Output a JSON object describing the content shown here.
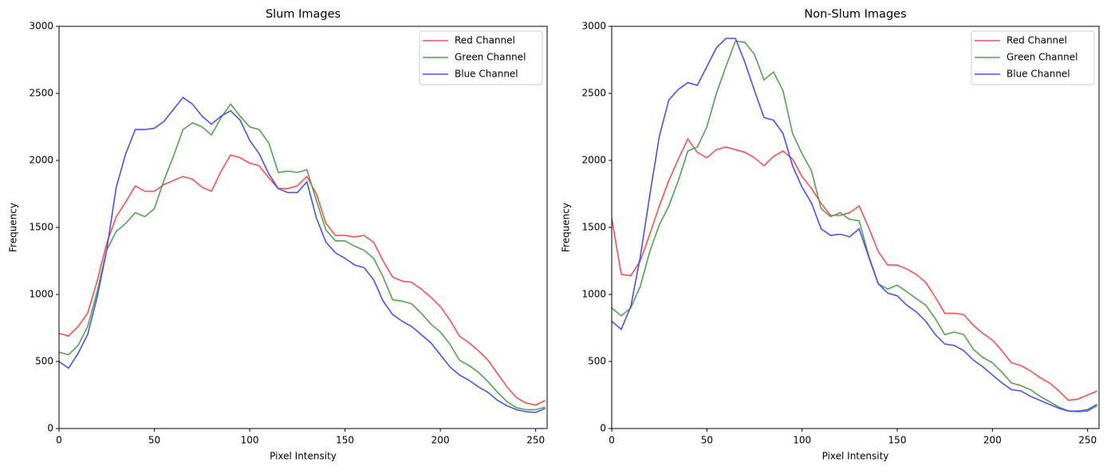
{
  "chart_data": [
    {
      "type": "line",
      "title": "Slum Images",
      "x_label": "Pixel Intensity",
      "y_label": "Frequency",
      "x": [
        0,
        5,
        10,
        15,
        20,
        25,
        30,
        35,
        40,
        45,
        50,
        55,
        60,
        65,
        70,
        75,
        80,
        85,
        90,
        95,
        100,
        105,
        110,
        115,
        120,
        125,
        130,
        135,
        140,
        145,
        150,
        155,
        160,
        165,
        170,
        175,
        180,
        185,
        190,
        195,
        200,
        205,
        210,
        215,
        220,
        225,
        230,
        235,
        240,
        245,
        250,
        255
      ],
      "xlim": [
        0,
        256
      ],
      "ylim": [
        0,
        3000
      ],
      "xticks": [
        0,
        50,
        100,
        150,
        200,
        250
      ],
      "yticks": [
        0,
        500,
        1000,
        1500,
        2000,
        2500,
        3000
      ],
      "grid": false,
      "legend": "upper right",
      "series": [
        {
          "name": "Red Channel",
          "color": "#ff4d4d",
          "values": [
            710,
            690,
            760,
            860,
            1100,
            1380,
            1580,
            1690,
            1810,
            1770,
            1770,
            1820,
            1850,
            1880,
            1860,
            1800,
            1770,
            1920,
            2040,
            2020,
            1980,
            1960,
            1870,
            1790,
            1790,
            1810,
            1880,
            1750,
            1530,
            1440,
            1440,
            1430,
            1440,
            1390,
            1250,
            1130,
            1100,
            1090,
            1040,
            980,
            910,
            810,
            690,
            640,
            580,
            510,
            410,
            310,
            230,
            190,
            175,
            210
          ]
        },
        {
          "name": "Green Channel",
          "color": "#4da64d",
          "values": [
            570,
            550,
            620,
            760,
            1020,
            1330,
            1470,
            1530,
            1610,
            1580,
            1640,
            1850,
            2030,
            2230,
            2280,
            2250,
            2190,
            2320,
            2420,
            2330,
            2250,
            2230,
            2130,
            1910,
            1920,
            1910,
            1930,
            1700,
            1480,
            1400,
            1400,
            1360,
            1330,
            1270,
            1130,
            960,
            950,
            930,
            860,
            780,
            720,
            630,
            510,
            470,
            420,
            350,
            270,
            200,
            155,
            140,
            140,
            160
          ]
        },
        {
          "name": "Blue Channel",
          "color": "#4d4dff",
          "values": [
            500,
            450,
            560,
            700,
            980,
            1330,
            1800,
            2050,
            2230,
            2230,
            2240,
            2290,
            2380,
            2470,
            2420,
            2330,
            2270,
            2330,
            2370,
            2300,
            2150,
            2050,
            1900,
            1790,
            1760,
            1760,
            1840,
            1570,
            1390,
            1310,
            1270,
            1220,
            1200,
            1110,
            950,
            850,
            800,
            760,
            700,
            640,
            550,
            460,
            400,
            360,
            310,
            270,
            210,
            170,
            140,
            125,
            120,
            150
          ]
        }
      ]
    },
    {
      "type": "line",
      "title": "Non-Slum Images",
      "x_label": "Pixel Intensity",
      "y_label": "Frequency",
      "x": [
        0,
        5,
        10,
        15,
        20,
        25,
        30,
        35,
        40,
        45,
        50,
        55,
        60,
        65,
        70,
        75,
        80,
        85,
        90,
        95,
        100,
        105,
        110,
        115,
        120,
        125,
        130,
        135,
        140,
        145,
        150,
        155,
        160,
        165,
        170,
        175,
        180,
        185,
        190,
        195,
        200,
        205,
        210,
        215,
        220,
        225,
        230,
        235,
        240,
        245,
        250,
        255
      ],
      "xlim": [
        0,
        256
      ],
      "ylim": [
        0,
        3000
      ],
      "xticks": [
        0,
        50,
        100,
        150,
        200,
        250
      ],
      "yticks": [
        0,
        500,
        1000,
        1500,
        2000,
        2500,
        3000
      ],
      "grid": false,
      "legend": "upper right",
      "series": [
        {
          "name": "Red Channel",
          "color": "#ff4d4d",
          "values": [
            1570,
            1150,
            1140,
            1250,
            1450,
            1660,
            1850,
            2010,
            2160,
            2060,
            2020,
            2080,
            2100,
            2080,
            2060,
            2020,
            1960,
            2030,
            2070,
            2010,
            1880,
            1790,
            1680,
            1590,
            1590,
            1610,
            1660,
            1500,
            1320,
            1220,
            1220,
            1190,
            1150,
            1090,
            980,
            860,
            860,
            850,
            770,
            710,
            660,
            580,
            490,
            470,
            430,
            380,
            340,
            280,
            210,
            220,
            250,
            280
          ]
        },
        {
          "name": "Green Channel",
          "color": "#4da64d",
          "values": [
            900,
            840,
            900,
            1060,
            1320,
            1520,
            1660,
            1850,
            2070,
            2100,
            2250,
            2500,
            2700,
            2890,
            2880,
            2790,
            2600,
            2660,
            2520,
            2200,
            2050,
            1920,
            1640,
            1580,
            1610,
            1560,
            1550,
            1290,
            1080,
            1040,
            1070,
            1020,
            970,
            920,
            820,
            700,
            720,
            700,
            590,
            530,
            490,
            420,
            340,
            320,
            290,
            240,
            200,
            160,
            130,
            125,
            130,
            170
          ]
        },
        {
          "name": "Blue Channel",
          "color": "#4d4dff",
          "values": [
            800,
            740,
            910,
            1280,
            1740,
            2180,
            2450,
            2530,
            2580,
            2560,
            2700,
            2840,
            2910,
            2910,
            2730,
            2520,
            2320,
            2300,
            2200,
            1960,
            1800,
            1680,
            1490,
            1440,
            1450,
            1430,
            1490,
            1280,
            1080,
            1010,
            990,
            920,
            870,
            800,
            700,
            630,
            620,
            580,
            510,
            460,
            400,
            340,
            290,
            280,
            240,
            210,
            180,
            150,
            130,
            130,
            140,
            180
          ]
        }
      ]
    }
  ]
}
